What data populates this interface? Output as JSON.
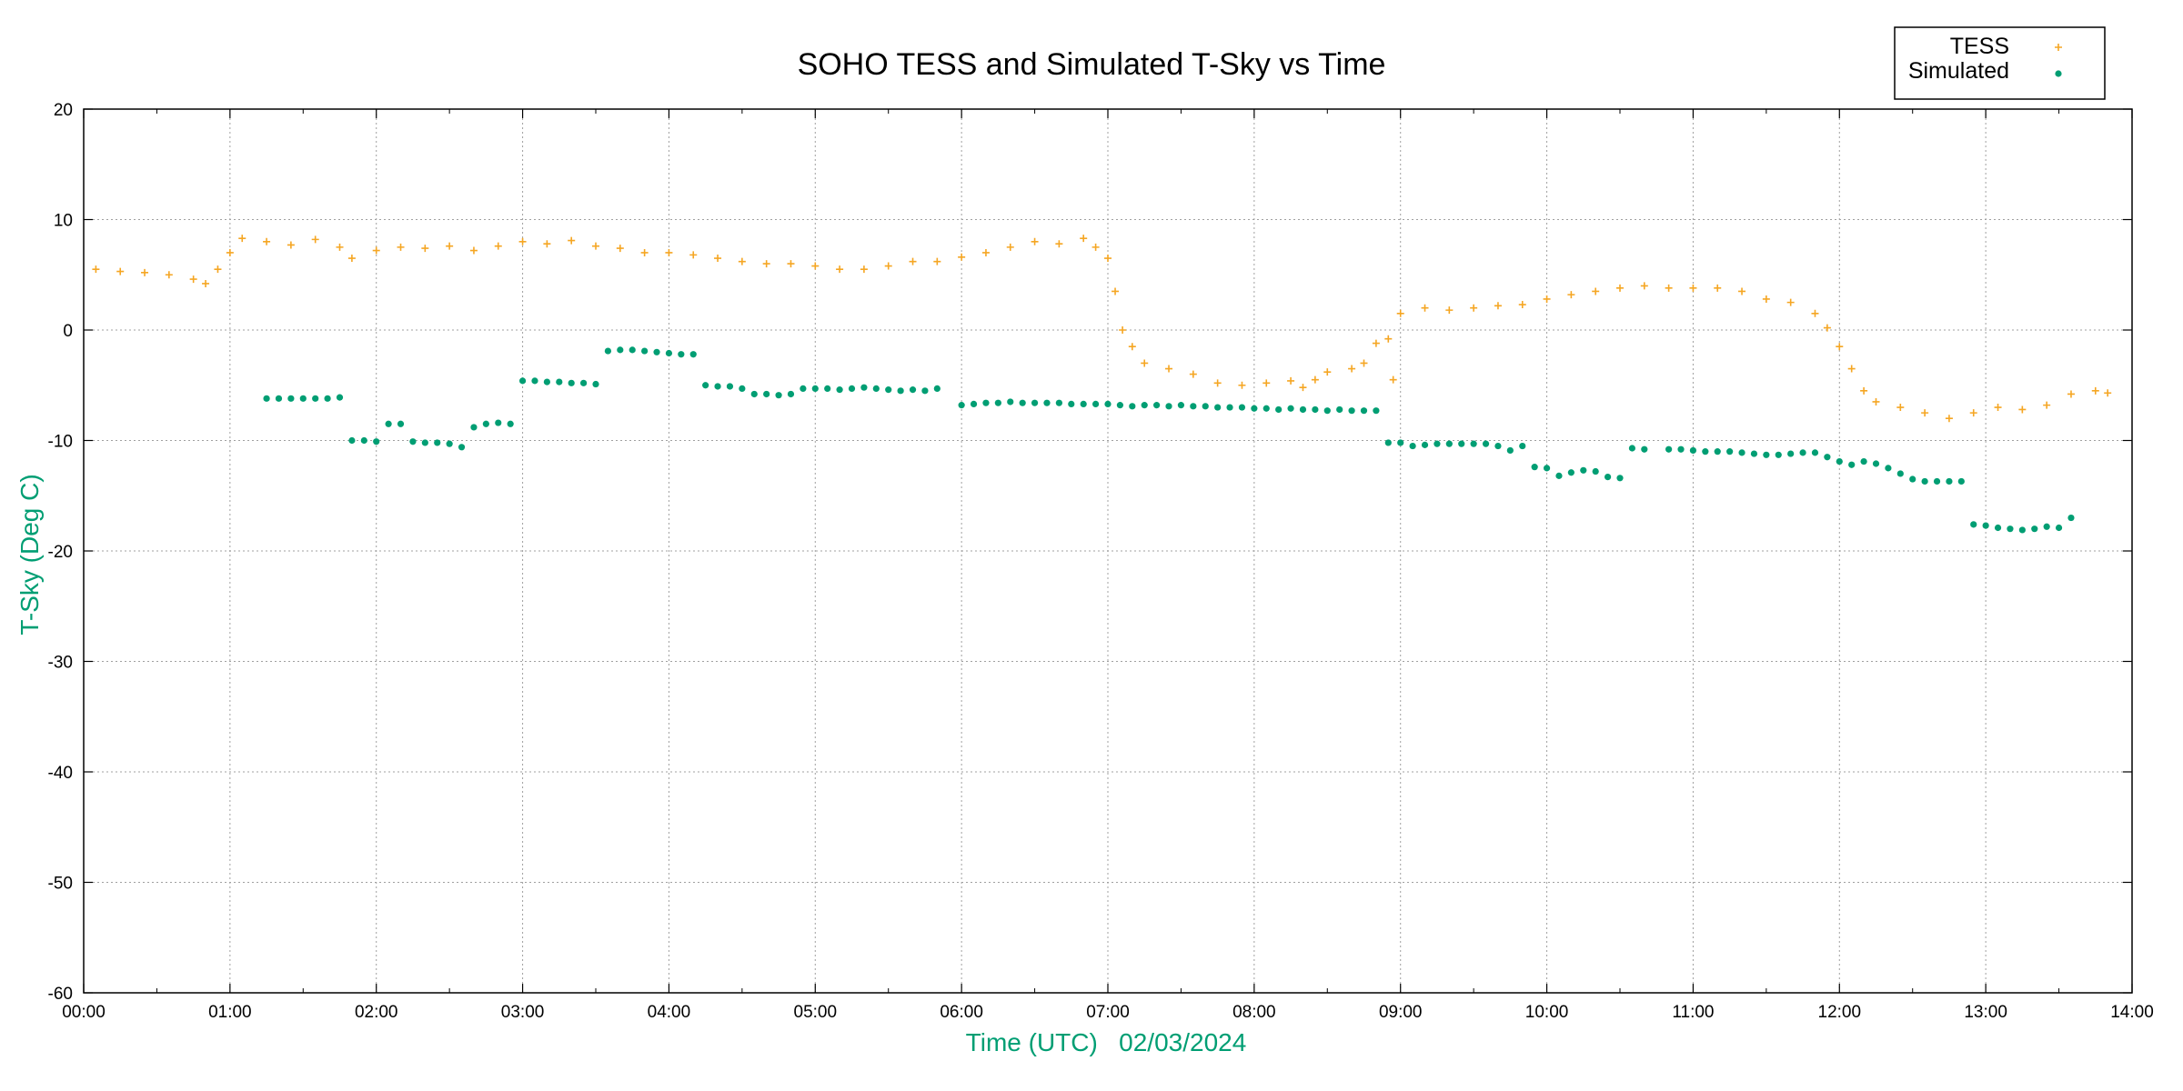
{
  "chart_data": {
    "type": "scatter",
    "title": "SOHO TESS and Simulated T-Sky vs Time",
    "xlabel": "Time (UTC)   02/03/2024",
    "ylabel": "T-Sky (Deg C)",
    "xlim": [
      "00:00",
      "14:00"
    ],
    "ylim": [
      -60,
      20
    ],
    "x_ticks": [
      "00:00",
      "01:00",
      "02:00",
      "03:00",
      "04:00",
      "05:00",
      "06:00",
      "07:00",
      "08:00",
      "09:00",
      "10:00",
      "11:00",
      "12:00",
      "13:00",
      "14:00"
    ],
    "y_ticks": [
      20,
      10,
      0,
      -10,
      -20,
      -30,
      -40,
      -50,
      -60
    ],
    "grid": true,
    "legend_position": "top-right",
    "label_color": "#009e73",
    "series": [
      {
        "name": "TESS",
        "marker": "plus",
        "color": "#f5a623",
        "points": [
          [
            "00:05",
            5.5
          ],
          [
            "00:15",
            5.3
          ],
          [
            "00:25",
            5.2
          ],
          [
            "00:35",
            5.0
          ],
          [
            "00:45",
            4.6
          ],
          [
            "00:50",
            4.2
          ],
          [
            "00:55",
            5.5
          ],
          [
            "01:00",
            7.0
          ],
          [
            "01:05",
            8.3
          ],
          [
            "01:15",
            8.0
          ],
          [
            "01:25",
            7.7
          ],
          [
            "01:35",
            8.2
          ],
          [
            "01:45",
            7.5
          ],
          [
            "01:50",
            6.5
          ],
          [
            "02:00",
            7.2
          ],
          [
            "02:10",
            7.5
          ],
          [
            "02:20",
            7.4
          ],
          [
            "02:30",
            7.6
          ],
          [
            "02:40",
            7.2
          ],
          [
            "02:50",
            7.6
          ],
          [
            "03:00",
            8.0
          ],
          [
            "03:10",
            7.8
          ],
          [
            "03:20",
            8.1
          ],
          [
            "03:30",
            7.6
          ],
          [
            "03:40",
            7.4
          ],
          [
            "03:50",
            7.0
          ],
          [
            "04:00",
            7.0
          ],
          [
            "04:10",
            6.8
          ],
          [
            "04:20",
            6.5
          ],
          [
            "04:30",
            6.2
          ],
          [
            "04:40",
            6.0
          ],
          [
            "04:50",
            6.0
          ],
          [
            "05:00",
            5.8
          ],
          [
            "05:10",
            5.5
          ],
          [
            "05:20",
            5.5
          ],
          [
            "05:30",
            5.8
          ],
          [
            "05:40",
            6.2
          ],
          [
            "05:50",
            6.2
          ],
          [
            "06:00",
            6.6
          ],
          [
            "06:10",
            7.0
          ],
          [
            "06:20",
            7.5
          ],
          [
            "06:30",
            8.0
          ],
          [
            "06:40",
            7.8
          ],
          [
            "06:50",
            8.3
          ],
          [
            "06:55",
            7.5
          ],
          [
            "07:00",
            6.5
          ],
          [
            "07:03",
            3.5
          ],
          [
            "07:06",
            0.0
          ],
          [
            "07:10",
            -1.5
          ],
          [
            "07:15",
            -3.0
          ],
          [
            "07:25",
            -3.5
          ],
          [
            "07:35",
            -4.0
          ],
          [
            "07:45",
            -4.8
          ],
          [
            "07:55",
            -5.0
          ],
          [
            "08:05",
            -4.8
          ],
          [
            "08:15",
            -4.6
          ],
          [
            "08:20",
            -5.2
          ],
          [
            "08:25",
            -4.5
          ],
          [
            "08:30",
            -3.8
          ],
          [
            "08:40",
            -3.5
          ],
          [
            "08:45",
            -3.0
          ],
          [
            "08:50",
            -1.2
          ],
          [
            "08:55",
            -0.8
          ],
          [
            "08:57",
            -4.5
          ],
          [
            "09:00",
            1.5
          ],
          [
            "09:10",
            2.0
          ],
          [
            "09:20",
            1.8
          ],
          [
            "09:30",
            2.0
          ],
          [
            "09:40",
            2.2
          ],
          [
            "09:50",
            2.3
          ],
          [
            "10:00",
            2.8
          ],
          [
            "10:10",
            3.2
          ],
          [
            "10:20",
            3.5
          ],
          [
            "10:30",
            3.8
          ],
          [
            "10:40",
            4.0
          ],
          [
            "10:50",
            3.8
          ],
          [
            "11:00",
            3.8
          ],
          [
            "11:10",
            3.8
          ],
          [
            "11:20",
            3.5
          ],
          [
            "11:30",
            2.8
          ],
          [
            "11:40",
            2.5
          ],
          [
            "11:50",
            1.5
          ],
          [
            "11:55",
            0.2
          ],
          [
            "12:00",
            -1.5
          ],
          [
            "12:05",
            -3.5
          ],
          [
            "12:10",
            -5.5
          ],
          [
            "12:15",
            -6.5
          ],
          [
            "12:25",
            -7.0
          ],
          [
            "12:35",
            -7.5
          ],
          [
            "12:45",
            -8.0
          ],
          [
            "12:55",
            -7.5
          ],
          [
            "13:05",
            -7.0
          ],
          [
            "13:15",
            -7.2
          ],
          [
            "13:25",
            -6.8
          ],
          [
            "13:35",
            -5.8
          ],
          [
            "13:45",
            -5.5
          ],
          [
            "13:50",
            -5.7
          ]
        ]
      },
      {
        "name": "Simulated",
        "marker": "dot",
        "color": "#009e73",
        "points": [
          [
            "01:15",
            -6.2
          ],
          [
            "01:20",
            -6.2
          ],
          [
            "01:25",
            -6.2
          ],
          [
            "01:30",
            -6.2
          ],
          [
            "01:35",
            -6.2
          ],
          [
            "01:40",
            -6.2
          ],
          [
            "01:45",
            -6.1
          ],
          [
            "01:50",
            -10.0
          ],
          [
            "01:55",
            -10.0
          ],
          [
            "02:00",
            -10.1
          ],
          [
            "02:05",
            -8.5
          ],
          [
            "02:10",
            -8.5
          ],
          [
            "02:15",
            -10.1
          ],
          [
            "02:20",
            -10.2
          ],
          [
            "02:25",
            -10.2
          ],
          [
            "02:30",
            -10.3
          ],
          [
            "02:35",
            -10.6
          ],
          [
            "02:40",
            -8.8
          ],
          [
            "02:45",
            -8.5
          ],
          [
            "02:50",
            -8.4
          ],
          [
            "02:55",
            -8.5
          ],
          [
            "03:00",
            -4.6
          ],
          [
            "03:05",
            -4.6
          ],
          [
            "03:10",
            -4.7
          ],
          [
            "03:15",
            -4.7
          ],
          [
            "03:20",
            -4.8
          ],
          [
            "03:25",
            -4.8
          ],
          [
            "03:30",
            -4.9
          ],
          [
            "03:35",
            -1.9
          ],
          [
            "03:40",
            -1.8
          ],
          [
            "03:45",
            -1.8
          ],
          [
            "03:50",
            -1.9
          ],
          [
            "03:55",
            -2.0
          ],
          [
            "04:00",
            -2.1
          ],
          [
            "04:05",
            -2.2
          ],
          [
            "04:10",
            -2.2
          ],
          [
            "04:15",
            -5.0
          ],
          [
            "04:20",
            -5.1
          ],
          [
            "04:25",
            -5.1
          ],
          [
            "04:30",
            -5.3
          ],
          [
            "04:35",
            -5.8
          ],
          [
            "04:40",
            -5.8
          ],
          [
            "04:45",
            -5.9
          ],
          [
            "04:50",
            -5.8
          ],
          [
            "04:55",
            -5.3
          ],
          [
            "05:00",
            -5.3
          ],
          [
            "05:05",
            -5.3
          ],
          [
            "05:10",
            -5.4
          ],
          [
            "05:15",
            -5.3
          ],
          [
            "05:20",
            -5.2
          ],
          [
            "05:25",
            -5.3
          ],
          [
            "05:30",
            -5.4
          ],
          [
            "05:35",
            -5.5
          ],
          [
            "05:40",
            -5.4
          ],
          [
            "05:45",
            -5.5
          ],
          [
            "05:50",
            -5.3
          ],
          [
            "06:00",
            -6.8
          ],
          [
            "06:05",
            -6.7
          ],
          [
            "06:10",
            -6.6
          ],
          [
            "06:15",
            -6.6
          ],
          [
            "06:20",
            -6.5
          ],
          [
            "06:25",
            -6.6
          ],
          [
            "06:30",
            -6.6
          ],
          [
            "06:35",
            -6.6
          ],
          [
            "06:40",
            -6.6
          ],
          [
            "06:45",
            -6.7
          ],
          [
            "06:50",
            -6.7
          ],
          [
            "06:55",
            -6.7
          ],
          [
            "07:00",
            -6.7
          ],
          [
            "07:05",
            -6.8
          ],
          [
            "07:10",
            -6.9
          ],
          [
            "07:15",
            -6.8
          ],
          [
            "07:20",
            -6.8
          ],
          [
            "07:25",
            -6.9
          ],
          [
            "07:30",
            -6.8
          ],
          [
            "07:35",
            -6.9
          ],
          [
            "07:40",
            -6.9
          ],
          [
            "07:45",
            -7.0
          ],
          [
            "07:50",
            -7.0
          ],
          [
            "07:55",
            -7.0
          ],
          [
            "08:00",
            -7.1
          ],
          [
            "08:05",
            -7.1
          ],
          [
            "08:10",
            -7.2
          ],
          [
            "08:15",
            -7.1
          ],
          [
            "08:20",
            -7.2
          ],
          [
            "08:25",
            -7.2
          ],
          [
            "08:30",
            -7.3
          ],
          [
            "08:35",
            -7.2
          ],
          [
            "08:40",
            -7.3
          ],
          [
            "08:45",
            -7.3
          ],
          [
            "08:50",
            -7.3
          ],
          [
            "08:55",
            -10.2
          ],
          [
            "09:00",
            -10.2
          ],
          [
            "09:05",
            -10.5
          ],
          [
            "09:10",
            -10.4
          ],
          [
            "09:15",
            -10.3
          ],
          [
            "09:20",
            -10.3
          ],
          [
            "09:25",
            -10.3
          ],
          [
            "09:30",
            -10.3
          ],
          [
            "09:35",
            -10.3
          ],
          [
            "09:40",
            -10.5
          ],
          [
            "09:45",
            -10.9
          ],
          [
            "09:50",
            -10.5
          ],
          [
            "09:55",
            -12.4
          ],
          [
            "10:00",
            -12.5
          ],
          [
            "10:05",
            -13.2
          ],
          [
            "10:10",
            -12.9
          ],
          [
            "10:15",
            -12.7
          ],
          [
            "10:20",
            -12.8
          ],
          [
            "10:25",
            -13.3
          ],
          [
            "10:30",
            -13.4
          ],
          [
            "10:35",
            -10.7
          ],
          [
            "10:40",
            -10.8
          ],
          [
            "10:50",
            -10.8
          ],
          [
            "10:55",
            -10.8
          ],
          [
            "11:00",
            -10.9
          ],
          [
            "11:05",
            -11.0
          ],
          [
            "11:10",
            -11.0
          ],
          [
            "11:15",
            -11.0
          ],
          [
            "11:20",
            -11.1
          ],
          [
            "11:25",
            -11.2
          ],
          [
            "11:30",
            -11.3
          ],
          [
            "11:35",
            -11.3
          ],
          [
            "11:40",
            -11.2
          ],
          [
            "11:45",
            -11.1
          ],
          [
            "11:50",
            -11.1
          ],
          [
            "11:55",
            -11.5
          ],
          [
            "12:00",
            -11.9
          ],
          [
            "12:05",
            -12.2
          ],
          [
            "12:10",
            -11.9
          ],
          [
            "12:15",
            -12.1
          ],
          [
            "12:20",
            -12.5
          ],
          [
            "12:25",
            -13.0
          ],
          [
            "12:30",
            -13.5
          ],
          [
            "12:35",
            -13.7
          ],
          [
            "12:40",
            -13.7
          ],
          [
            "12:45",
            -13.7
          ],
          [
            "12:50",
            -13.7
          ],
          [
            "12:55",
            -17.6
          ],
          [
            "13:00",
            -17.7
          ],
          [
            "13:05",
            -17.9
          ],
          [
            "13:10",
            -18.0
          ],
          [
            "13:15",
            -18.1
          ],
          [
            "13:20",
            -18.0
          ],
          [
            "13:25",
            -17.8
          ],
          [
            "13:30",
            -17.9
          ],
          [
            "13:35",
            -17.0
          ]
        ]
      }
    ]
  }
}
